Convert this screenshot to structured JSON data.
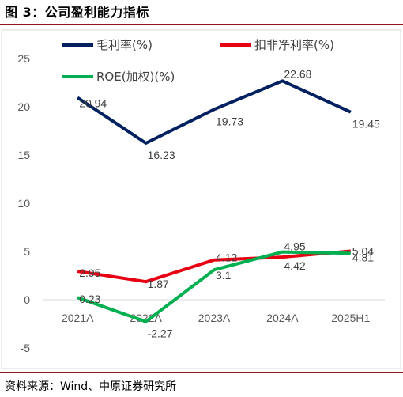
{
  "title": "图 3：公司盈利能力指标",
  "source": "资料来源：Wind、中原证券研究所",
  "chart_data": {
    "type": "line",
    "categories": [
      "2021A",
      "2022A",
      "2023A",
      "2024A",
      "2025H1"
    ],
    "ylim": [
      -5,
      25
    ],
    "yticks": [
      "-5",
      "0",
      "5",
      "10",
      "15",
      "20",
      "25"
    ],
    "grid": false,
    "legend": "top",
    "series": [
      {
        "name": "毛利率(%)",
        "color": "#002060",
        "values": [
          20.94,
          16.23,
          19.73,
          22.68,
          19.45
        ],
        "labels": [
          "20.94",
          "16.23",
          "19.73",
          "22.68",
          "19.45"
        ]
      },
      {
        "name": "扣非净利率(%)",
        "color": "#e60012",
        "values": [
          2.95,
          1.87,
          4.12,
          4.42,
          5.04
        ],
        "labels": [
          "2.95",
          "1.87",
          "4.12",
          "4.42",
          "5.04"
        ]
      },
      {
        "name": "ROE(加权)(%)",
        "color": "#00b050",
        "values": [
          0.23,
          -2.27,
          3.1,
          4.95,
          4.81
        ],
        "labels": [
          "0.23",
          "-2.27",
          "3.1",
          "4.95",
          "4.81"
        ]
      }
    ]
  }
}
